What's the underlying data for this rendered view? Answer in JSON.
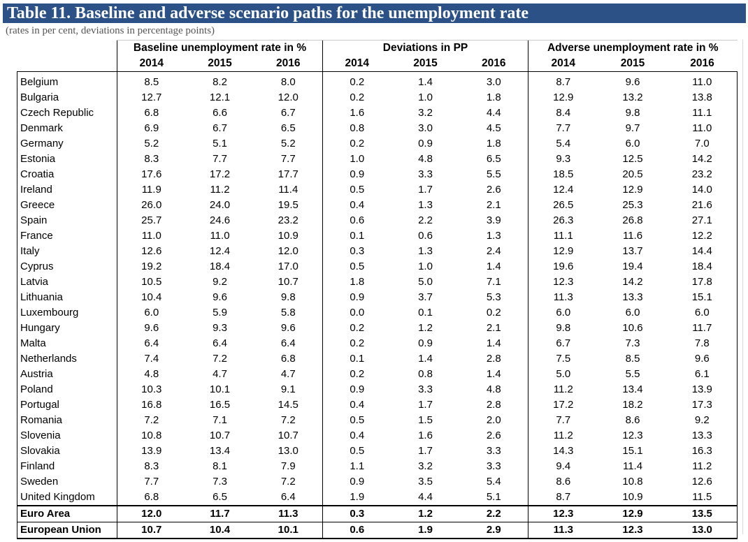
{
  "title": "Table 11. Baseline and adverse scenario paths for the unemployment rate",
  "subtitle": "(rates in per cent, deviations in percentage points)",
  "groups": [
    {
      "label": "Baseline unemployment rate in %"
    },
    {
      "label": "Deviations in PP"
    },
    {
      "label": "Adverse unemployment rate in %"
    }
  ],
  "years": [
    "2014",
    "2015",
    "2016"
  ],
  "rows": [
    {
      "country": "Belgium",
      "values": [
        "8.5",
        "8.2",
        "8.0",
        "0.2",
        "1.4",
        "3.0",
        "8.7",
        "9.6",
        "11.0"
      ]
    },
    {
      "country": "Bulgaria",
      "values": [
        "12.7",
        "12.1",
        "12.0",
        "0.2",
        "1.0",
        "1.8",
        "12.9",
        "13.2",
        "13.8"
      ]
    },
    {
      "country": "Czech Republic",
      "values": [
        "6.8",
        "6.6",
        "6.7",
        "1.6",
        "3.2",
        "4.4",
        "8.4",
        "9.8",
        "11.1"
      ]
    },
    {
      "country": "Denmark",
      "values": [
        "6.9",
        "6.7",
        "6.5",
        "0.8",
        "3.0",
        "4.5",
        "7.7",
        "9.7",
        "11.0"
      ]
    },
    {
      "country": "Germany",
      "values": [
        "5.2",
        "5.1",
        "5.2",
        "0.2",
        "0.9",
        "1.8",
        "5.4",
        "6.0",
        "7.0"
      ]
    },
    {
      "country": "Estonia",
      "values": [
        "8.3",
        "7.7",
        "7.7",
        "1.0",
        "4.8",
        "6.5",
        "9.3",
        "12.5",
        "14.2"
      ]
    },
    {
      "country": "Croatia",
      "values": [
        "17.6",
        "17.2",
        "17.7",
        "0.9",
        "3.3",
        "5.5",
        "18.5",
        "20.5",
        "23.2"
      ]
    },
    {
      "country": "Ireland",
      "values": [
        "11.9",
        "11.2",
        "11.4",
        "0.5",
        "1.7",
        "2.6",
        "12.4",
        "12.9",
        "14.0"
      ]
    },
    {
      "country": "Greece",
      "values": [
        "26.0",
        "24.0",
        "19.5",
        "0.4",
        "1.3",
        "2.1",
        "26.5",
        "25.3",
        "21.6"
      ]
    },
    {
      "country": "Spain",
      "values": [
        "25.7",
        "24.6",
        "23.2",
        "0.6",
        "2.2",
        "3.9",
        "26.3",
        "26.8",
        "27.1"
      ]
    },
    {
      "country": "France",
      "values": [
        "11.0",
        "11.0",
        "10.9",
        "0.1",
        "0.6",
        "1.3",
        "11.1",
        "11.6",
        "12.2"
      ]
    },
    {
      "country": "Italy",
      "values": [
        "12.6",
        "12.4",
        "12.0",
        "0.3",
        "1.3",
        "2.4",
        "12.9",
        "13.7",
        "14.4"
      ]
    },
    {
      "country": "Cyprus",
      "values": [
        "19.2",
        "18.4",
        "17.0",
        "0.5",
        "1.0",
        "1.4",
        "19.6",
        "19.4",
        "18.4"
      ]
    },
    {
      "country": "Latvia",
      "values": [
        "10.5",
        "9.2",
        "10.7",
        "1.8",
        "5.0",
        "7.1",
        "12.3",
        "14.2",
        "17.8"
      ]
    },
    {
      "country": "Lithuania",
      "values": [
        "10.4",
        "9.6",
        "9.8",
        "0.9",
        "3.7",
        "5.3",
        "11.3",
        "13.3",
        "15.1"
      ]
    },
    {
      "country": "Luxembourg",
      "values": [
        "6.0",
        "5.9",
        "5.8",
        "0.0",
        "0.1",
        "0.2",
        "6.0",
        "6.0",
        "6.0"
      ]
    },
    {
      "country": "Hungary",
      "values": [
        "9.6",
        "9.3",
        "9.6",
        "0.2",
        "1.2",
        "2.1",
        "9.8",
        "10.6",
        "11.7"
      ]
    },
    {
      "country": "Malta",
      "values": [
        "6.4",
        "6.4",
        "6.4",
        "0.2",
        "0.9",
        "1.4",
        "6.7",
        "7.3",
        "7.8"
      ]
    },
    {
      "country": "Netherlands",
      "values": [
        "7.4",
        "7.2",
        "6.8",
        "0.1",
        "1.4",
        "2.8",
        "7.5",
        "8.5",
        "9.6"
      ]
    },
    {
      "country": "Austria",
      "values": [
        "4.8",
        "4.7",
        "4.7",
        "0.2",
        "0.8",
        "1.4",
        "5.0",
        "5.5",
        "6.1"
      ]
    },
    {
      "country": "Poland",
      "values": [
        "10.3",
        "10.1",
        "9.1",
        "0.9",
        "3.3",
        "4.8",
        "11.2",
        "13.4",
        "13.9"
      ]
    },
    {
      "country": "Portugal",
      "values": [
        "16.8",
        "16.5",
        "14.5",
        "0.4",
        "1.7",
        "2.8",
        "17.2",
        "18.2",
        "17.3"
      ]
    },
    {
      "country": "Romania",
      "values": [
        "7.2",
        "7.1",
        "7.2",
        "0.5",
        "1.5",
        "2.0",
        "7.7",
        "8.6",
        "9.2"
      ]
    },
    {
      "country": "Slovenia",
      "values": [
        "10.8",
        "10.7",
        "10.7",
        "0.4",
        "1.6",
        "2.6",
        "11.2",
        "12.3",
        "13.3"
      ]
    },
    {
      "country": "Slovakia",
      "values": [
        "13.9",
        "13.4",
        "13.0",
        "0.5",
        "1.7",
        "3.3",
        "14.3",
        "15.1",
        "16.3"
      ]
    },
    {
      "country": "Finland",
      "values": [
        "8.3",
        "8.1",
        "7.9",
        "1.1",
        "3.2",
        "3.3",
        "9.4",
        "11.4",
        "11.2"
      ]
    },
    {
      "country": "Sweden",
      "values": [
        "7.7",
        "7.3",
        "7.2",
        "0.9",
        "3.5",
        "5.4",
        "8.6",
        "10.8",
        "12.6"
      ]
    },
    {
      "country": "United Kingdom",
      "values": [
        "6.8",
        "6.5",
        "6.4",
        "1.9",
        "4.4",
        "5.1",
        "8.7",
        "10.9",
        "11.5"
      ]
    }
  ],
  "totals": [
    {
      "country": "Euro Area",
      "values": [
        "12.0",
        "11.7",
        "11.3",
        "0.3",
        "1.2",
        "2.2",
        "12.3",
        "12.9",
        "13.5"
      ]
    },
    {
      "country": "European Union",
      "values": [
        "10.7",
        "10.4",
        "10.1",
        "0.6",
        "1.9",
        "2.9",
        "11.3",
        "12.3",
        "13.0"
      ]
    }
  ]
}
